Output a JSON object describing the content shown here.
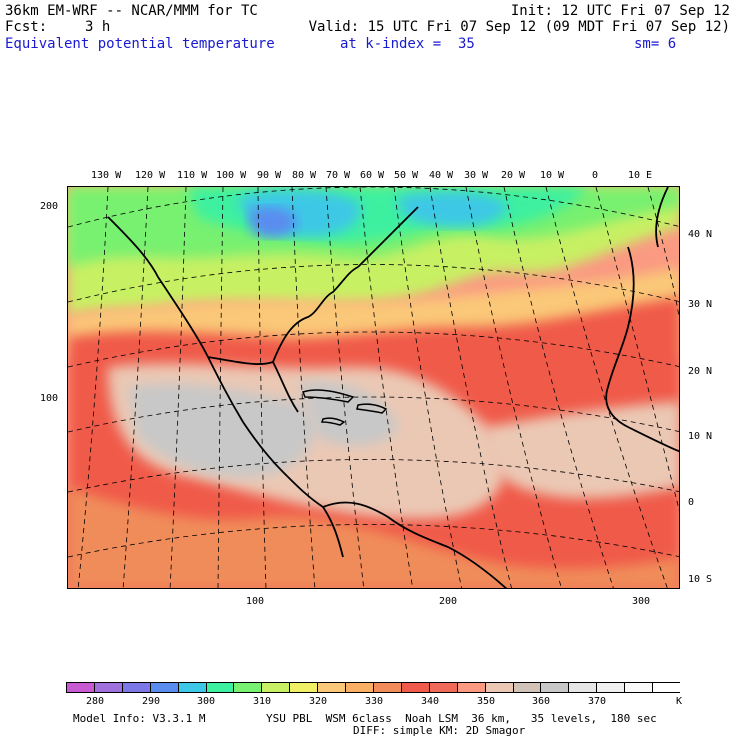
{
  "header": {
    "model_title": "36km EM-WRF -- NCAR/MMM for TC",
    "init": "Init: 12 UTC Fri 07 Sep 12",
    "fcst_label": "Fcst:",
    "fcst_value": "3 h",
    "valid": "Valid: 15 UTC Fri 07 Sep 12 (09 MDT Fri 07 Sep 12)",
    "field": "Equivalent potential temperature",
    "level": "at k-index =  35",
    "smoothing": "sm= 6"
  },
  "axes": {
    "top_lon_labels": [
      "130 W",
      "120 W",
      "110 W",
      "100 W",
      "90 W",
      "80 W",
      "70 W",
      "60 W",
      "50 W",
      "40 W",
      "30 W",
      "20 W",
      "10 W",
      "0",
      "10 E"
    ],
    "right_lat_labels": [
      "40 N",
      "30 N",
      "20 N",
      "10 N",
      "0",
      "10 S"
    ],
    "left_grid_labels": [
      "200",
      "100"
    ],
    "bottom_grid_labels": [
      "100",
      "200",
      "300"
    ]
  },
  "colorbar": {
    "unit": "K",
    "labels": [
      "280",
      "290",
      "300",
      "310",
      "320",
      "330",
      "340",
      "350",
      "360",
      "370"
    ],
    "colors": [
      "#c85ad2",
      "#a070dc",
      "#7c78e6",
      "#5a8cf0",
      "#3cc8e6",
      "#3cf0a0",
      "#78f070",
      "#c8f064",
      "#f0f064",
      "#fac878",
      "#fab064",
      "#f08c5a",
      "#f05a4a",
      "#f06a5a",
      "#fa9a82",
      "#ebc8b4",
      "#d2c3b9",
      "#c8c8c8",
      "#e6e6e6",
      "#f0f0f0",
      "#fafafa",
      "#ffffff"
    ]
  },
  "footer": {
    "model_info": "Model Info: V3.3.1 M",
    "physics_line1": "YSU PBL  WSM 6class  Noah LSM  36 km,   35 levels,  180 sec",
    "physics_line2": "DIFF: simple KM: 2D Smagor"
  },
  "map_colors": {
    "cold": "#5a8cf0",
    "cyan": "#3cc8e6",
    "green": "#3cf0a0",
    "lime": "#78f070",
    "yellow": "#c8f064",
    "peach": "#fac878",
    "orange": "#f08c5a",
    "red": "#f05a4a",
    "salmon": "#fa9a82",
    "tan": "#ebc8b4",
    "grey": "#c8c8c8",
    "land_line": "#000000"
  }
}
